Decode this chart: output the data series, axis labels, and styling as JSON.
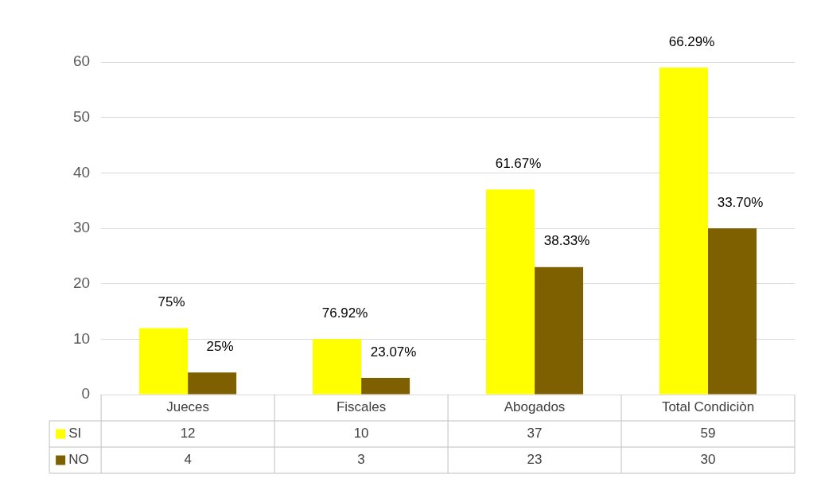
{
  "chart_data": {
    "type": "bar",
    "categories": [
      "Jueces",
      "Fiscales",
      "Abogados",
      "Total Condiciòn"
    ],
    "series": [
      {
        "name": "SI",
        "color": "#ffff00",
        "values": [
          12,
          10,
          37,
          59
        ]
      },
      {
        "name": "NO",
        "color": "#7f6000",
        "values": [
          4,
          3,
          23,
          30
        ]
      }
    ],
    "annotations": [
      {
        "text": "75%",
        "x": "Jueces",
        "y": 12
      },
      {
        "text": "25%",
        "x": "Jueces",
        "y": 4
      },
      {
        "text": "76.92%",
        "x": "Fiscales",
        "y": 10
      },
      {
        "text": "23.07%",
        "x": "Fiscales",
        "y": 3
      },
      {
        "text": "61.67%",
        "x": "Abogados",
        "y": 37
      },
      {
        "text": "38.33%",
        "x": "Abogados",
        "y": 23
      },
      {
        "text": "66.29%",
        "x": "Total Condiciòn",
        "y": 59
      },
      {
        "text": "33.70%",
        "x": "Total Condiciòn",
        "y": 30
      }
    ],
    "ylim": [
      0,
      60
    ],
    "yticks": [
      0,
      10,
      20,
      30,
      40,
      50,
      60
    ],
    "grid": "y",
    "legend": "bottom",
    "data_labels": true
  }
}
